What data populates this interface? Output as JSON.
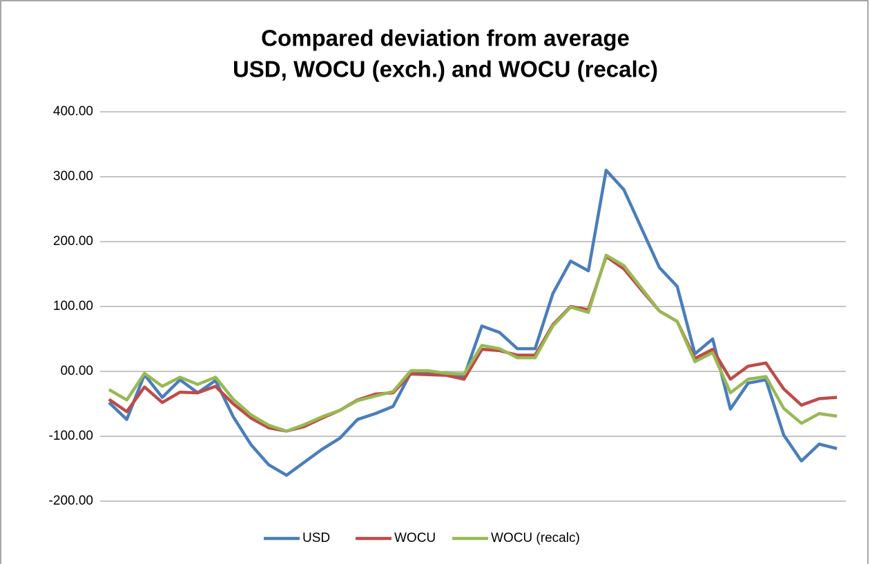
{
  "chart_data": {
    "type": "line",
    "title": [
      "Compared deviation from average",
      "USD, WOCU (exch.) and WOCU (recalc)"
    ],
    "ylim": [
      -200,
      400
    ],
    "yticks": [
      {
        "value": 400,
        "label": "400.00"
      },
      {
        "value": 300,
        "label": "300.00"
      },
      {
        "value": 200,
        "label": "200.00"
      },
      {
        "value": 100,
        "label": "100.00"
      },
      {
        "value": 0,
        "label": "00.00"
      },
      {
        "value": -100,
        "label": "-100.00"
      },
      {
        "value": -200,
        "label": "-200.00"
      }
    ],
    "grid": true,
    "legend": "bottom",
    "series": [
      {
        "name": "USD",
        "color": "#4a7ebb",
        "values": [
          -48,
          -74,
          -5,
          -40,
          -13,
          -33,
          -14,
          -70,
          -113,
          -144,
          -160,
          -140,
          -120,
          -103,
          -74,
          -65,
          -54,
          -2,
          -3,
          -5,
          -8,
          70,
          60,
          35,
          35,
          120,
          170,
          155,
          310,
          280,
          220,
          160,
          131,
          27,
          50,
          -58,
          -18,
          -13,
          -98,
          -138,
          -112,
          -119
        ]
      },
      {
        "name": "WOCU",
        "color": "#be4b48",
        "values": [
          -43,
          -62,
          -24,
          -48,
          -32,
          -33,
          -23,
          -50,
          -72,
          -87,
          -92,
          -85,
          -72,
          -60,
          -44,
          -35,
          -33,
          -4,
          -5,
          -6,
          -12,
          34,
          32,
          25,
          25,
          72,
          100,
          95,
          177,
          158,
          125,
          93,
          77,
          20,
          34,
          -12,
          8,
          13,
          -27,
          -52,
          -42,
          -40
        ]
      },
      {
        "name": "WOCU (recalc)",
        "color": "#98b954",
        "values": [
          -28,
          -44,
          -3,
          -23,
          -9,
          -20,
          -9,
          -43,
          -67,
          -83,
          -92,
          -82,
          -70,
          -60,
          -45,
          -38,
          -31,
          1,
          1,
          -3,
          -4,
          40,
          35,
          21,
          21,
          70,
          99,
          91,
          179,
          163,
          128,
          93,
          77,
          15,
          29,
          -33,
          -12,
          -8,
          -57,
          -80,
          -65,
          -69
        ]
      }
    ]
  }
}
